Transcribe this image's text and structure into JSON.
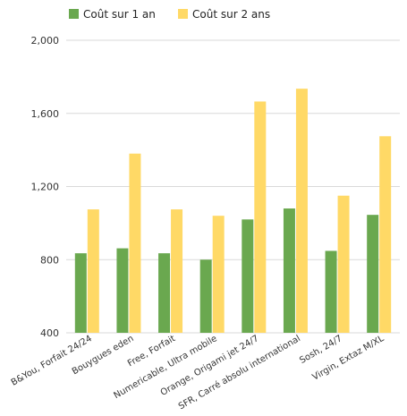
{
  "chart_data": {
    "type": "bar",
    "categories": [
      "B&You, Forfait 24/24",
      "Bouygues eden",
      "Free, Forfait",
      "Numericable, Ultra mobile",
      "Orange, Origami jet 24/7",
      "SFR, Carré absolu international",
      "Sosh, 24/7",
      "Virgin, Extaz M/XL"
    ],
    "series": [
      {
        "name": "Coût sur 1 an",
        "color": "#6aa84f",
        "values": [
          835,
          862,
          835,
          800,
          1020,
          1080,
          848,
          1045
        ]
      },
      {
        "name": "Coût sur 2 ans",
        "color": "#ffd966",
        "values": [
          1075,
          1380,
          1075,
          1040,
          1665,
          1735,
          1150,
          1475
        ]
      }
    ],
    "ylim": [
      400,
      2000
    ],
    "yticks": [
      400,
      800,
      1200,
      1600,
      2000
    ],
    "ytick_labels": [
      "400",
      "800",
      "1,200",
      "1,600",
      "2,000"
    ],
    "grid": true,
    "legend_position": "top-left"
  }
}
